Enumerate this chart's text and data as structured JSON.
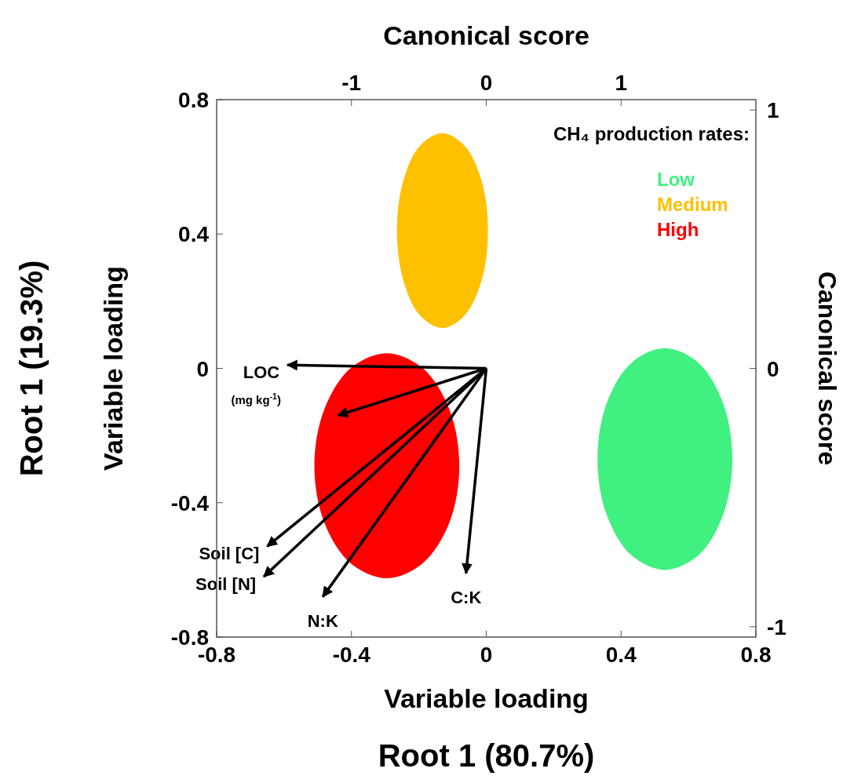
{
  "chart_data": {
    "type": "area",
    "xlabel": "Variable loading",
    "ylabel": "Variable loading",
    "x2label": "Canonical score",
    "y2label": "Canonical score",
    "legend_title": "CH₄ production rates:",
    "legend": "top right",
    "annotations": [
      "(mg kg$^{-1}$)",
      "Root 1 (80.7%)",
      "Root 1 (19.3%)",
      {
        "text": "LOC",
        "x": -0.59,
        "y": 0.01
      },
      {
        "text": "Soil [C]",
        "x": -0.65,
        "y": -0.53
      },
      {
        "text": "Soil [N]",
        "x": -0.66,
        "y": -0.62
      },
      {
        "text": "N:K",
        "x": -0.485,
        "y": -0.68
      },
      {
        "text": "C:K",
        "x": -0.06,
        "y": -0.61
      }
    ],
    "xlim": [
      -0.8,
      0.8
    ],
    "xticks": [
      -0.8,
      -0.4,
      0,
      0.4,
      0.8
    ],
    "ylim": [
      -0.8,
      0.8
    ],
    "yticks": [
      -0.8,
      -0.4,
      0,
      0.4,
      0.8
    ],
    "x2lim": [
      -2,
      2
    ],
    "x2ticks": [
      -1,
      0,
      1
    ],
    "y2lim": [
      -1.04,
      1.04
    ],
    "y2ticks": [
      -1,
      0,
      1
    ],
    "series": [
      {
        "name": "Low",
        "color": "#40f080",
        "x": [
          0.73,
          0.703,
          0.63,
          0.53,
          0.43,
          0.357,
          0.33,
          0.357,
          0.43,
          0.53,
          0.63,
          0.703
        ],
        "values": [
          -0.27,
          -0.105,
          0.016,
          0.06,
          0.016,
          -0.105,
          -0.27,
          -0.435,
          -0.556,
          -0.6,
          -0.556,
          -0.435
        ]
      },
      {
        "name": "Medium",
        "color": "#ffc000",
        "x": [
          0.005,
          -0.013,
          -0.063,
          -0.13,
          -0.198,
          -0.247,
          -0.265,
          -0.247,
          -0.198,
          -0.13,
          -0.063,
          -0.013
        ],
        "values": [
          0.41,
          0.555,
          0.661,
          0.7,
          0.661,
          0.555,
          0.41,
          0.265,
          0.159,
          0.12,
          0.159,
          0.265
        ]
      },
      {
        "name": "High",
        "color": "#ff0000",
        "x": [
          -0.08,
          -0.109,
          -0.188,
          -0.295,
          -0.403,
          -0.481,
          -0.51,
          -0.481,
          -0.403,
          -0.295,
          -0.188,
          -0.109
        ],
        "values": [
          -0.29,
          -0.123,
          0,
          0.045,
          0,
          -0.123,
          -0.29,
          -0.458,
          -0.58,
          -0.625,
          -0.58,
          -0.458
        ]
      },
      {
        "type": "line",
        "color": "#000000",
        "x": [
          0,
          -0.59
        ],
        "values": [
          0,
          0.01
        ]
      },
      {
        "type": "line",
        "color": "#000000",
        "x": [
          0,
          -0.44
        ],
        "values": [
          0,
          -0.14
        ]
      },
      {
        "type": "line",
        "color": "#000000",
        "x": [
          0,
          -0.65
        ],
        "values": [
          0,
          -0.53
        ]
      },
      {
        "type": "line",
        "color": "#000000",
        "x": [
          0,
          -0.66
        ],
        "values": [
          0,
          -0.62
        ]
      },
      {
        "type": "line",
        "color": "#000000",
        "x": [
          0,
          -0.485
        ],
        "values": [
          0,
          -0.68
        ]
      },
      {
        "type": "line",
        "color": "#000000",
        "x": [
          0,
          -0.06
        ],
        "values": [
          0,
          -0.61
        ]
      }
    ]
  }
}
